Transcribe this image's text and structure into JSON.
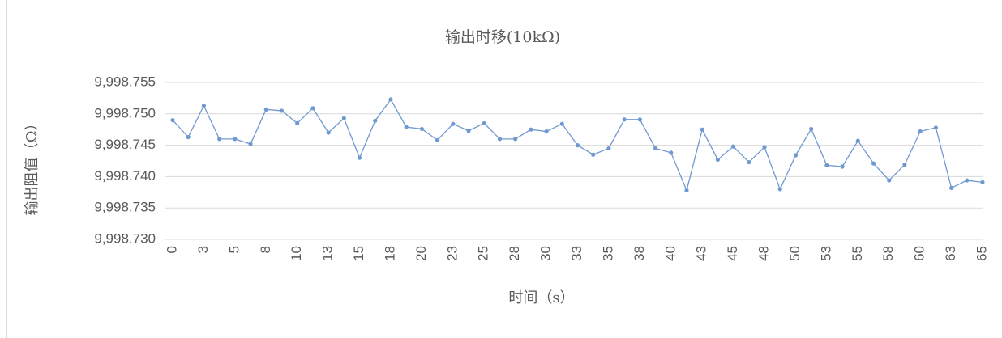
{
  "chart_data": {
    "type": "line",
    "title": "输出时移(10kΩ)",
    "x_label": "时间（s）",
    "y_label": "输出阻值（Ω）",
    "categories": [
      "0",
      null,
      "3",
      null,
      "5",
      null,
      "8",
      null,
      "10",
      null,
      "13",
      null,
      "15",
      null,
      "18",
      null,
      "20",
      null,
      "23",
      null,
      "25",
      null,
      "28",
      null,
      "30",
      null,
      "33",
      null,
      "35",
      null,
      "38",
      null,
      "40",
      null,
      "43",
      null,
      "45",
      null,
      "48",
      null,
      "50",
      null,
      "53",
      null,
      "55",
      null,
      "58",
      null,
      "60",
      null,
      "63",
      null,
      "65"
    ],
    "series": [
      {
        "name": "输出阻值",
        "color": "#7099d0",
        "values": [
          9998.749,
          9998.7463,
          9998.7513,
          9998.746,
          9998.746,
          9998.7452,
          9998.7507,
          9998.7505,
          9998.7485,
          9998.7509,
          9998.747,
          9998.7493,
          9998.743,
          9998.7489,
          9998.7523,
          9998.7479,
          9998.7476,
          9998.7458,
          9998.7484,
          9998.7473,
          9998.7485,
          9998.746,
          9998.746,
          9998.7475,
          9998.7472,
          9998.7484,
          9998.745,
          9998.7435,
          9998.7445,
          9998.7491,
          9998.7491,
          9998.7445,
          9998.7438,
          9998.7378,
          9998.7475,
          9998.7427,
          9998.7448,
          9998.7423,
          9998.7447,
          9998.738,
          9998.7434,
          9998.7476,
          9998.7418,
          9998.7416,
          9998.7457,
          9998.7421,
          9998.7394,
          9998.7419,
          9998.7472,
          9998.7478,
          9998.7382,
          9998.7394,
          9998.7391
        ]
      }
    ],
    "ylim": [
      9998.73,
      9998.755
    ],
    "yticks": [
      {
        "value": 9998.73,
        "label": "9,998.730"
      },
      {
        "value": 9998.735,
        "label": "9,998.735"
      },
      {
        "value": 9998.74,
        "label": "9,998.740"
      },
      {
        "value": 9998.745,
        "label": "9,998.745"
      },
      {
        "value": 9998.75,
        "label": "9,998.750"
      },
      {
        "value": 9998.755,
        "label": "9,998.755"
      }
    ],
    "grid": true
  }
}
